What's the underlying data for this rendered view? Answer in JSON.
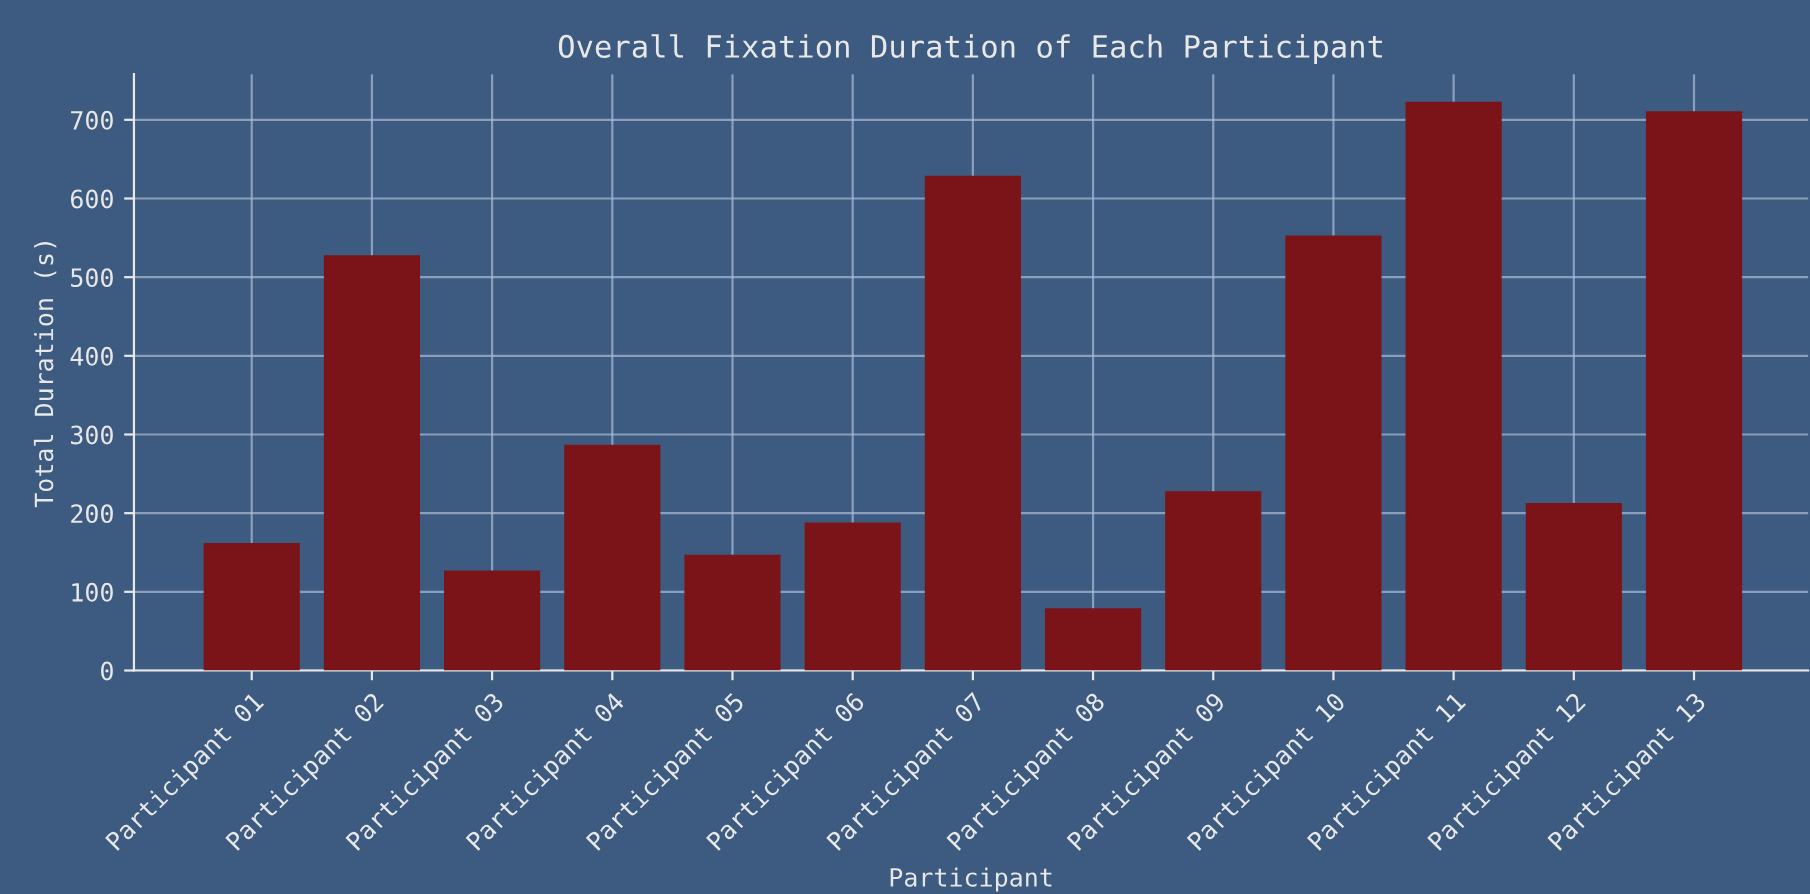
{
  "chart_data": {
    "type": "bar",
    "title": "Overall Fixation Duration of Each Participant",
    "xlabel": "Participant",
    "ylabel": "Total Duration (s)",
    "categories": [
      "Participant 01",
      "Participant 02",
      "Participant 03",
      "Participant 04",
      "Participant 05",
      "Participant 06",
      "Participant 07",
      "Participant 08",
      "Participant 09",
      "Participant 10",
      "Participant 11",
      "Participant 12",
      "Participant 13"
    ],
    "values": [
      162,
      528,
      127,
      287,
      147,
      188,
      629,
      79,
      228,
      553,
      723,
      213,
      711
    ],
    "color": "#7b1418",
    "ylim": [
      0,
      758
    ],
    "yticks": [
      0,
      100,
      200,
      300,
      400,
      500,
      600,
      700
    ],
    "grid": true,
    "legend": false
  }
}
